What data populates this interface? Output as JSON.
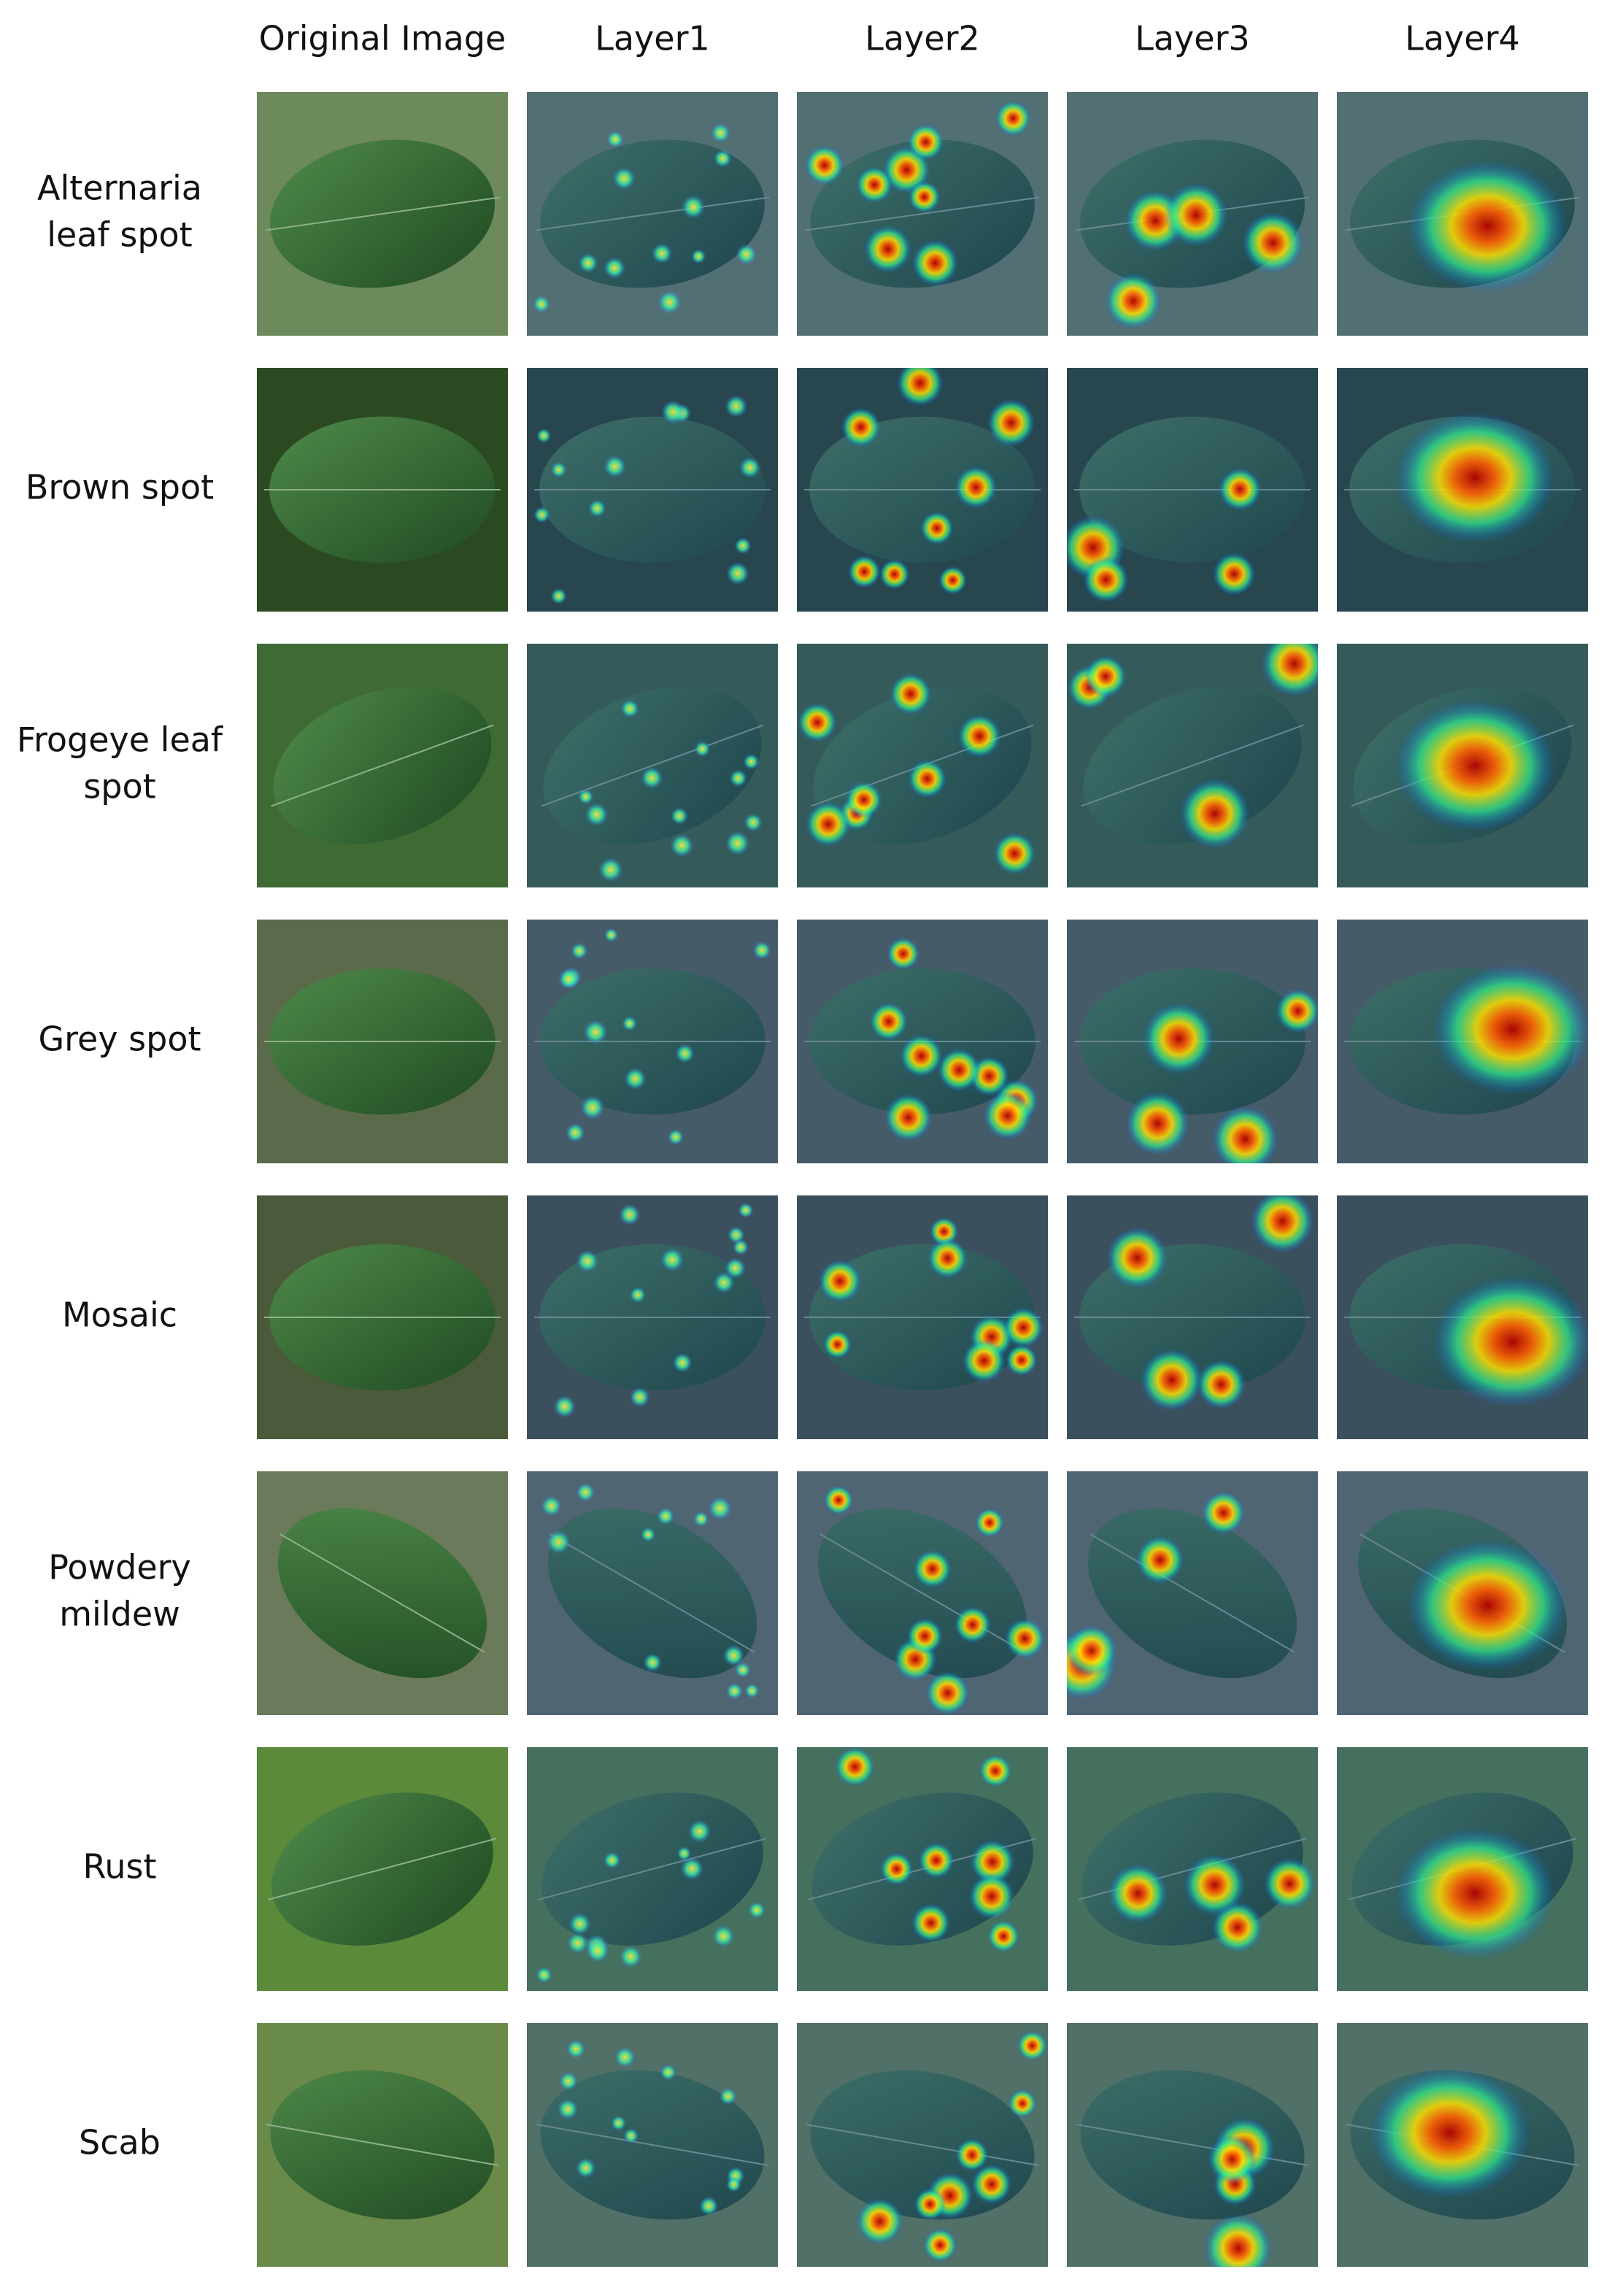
{
  "columns": [
    "Original Image",
    "Layer1",
    "Layer2",
    "Layer3",
    "Layer4"
  ],
  "rows": [
    [
      "Alternaria",
      "leaf spot"
    ],
    [
      "Brown spot"
    ],
    [
      "Frogeye leaf",
      "spot"
    ],
    [
      "Grey spot"
    ],
    [
      "Mosaic"
    ],
    [
      "Powdery",
      "mildew"
    ],
    [
      "Rust"
    ],
    [
      "Scab"
    ]
  ]
}
